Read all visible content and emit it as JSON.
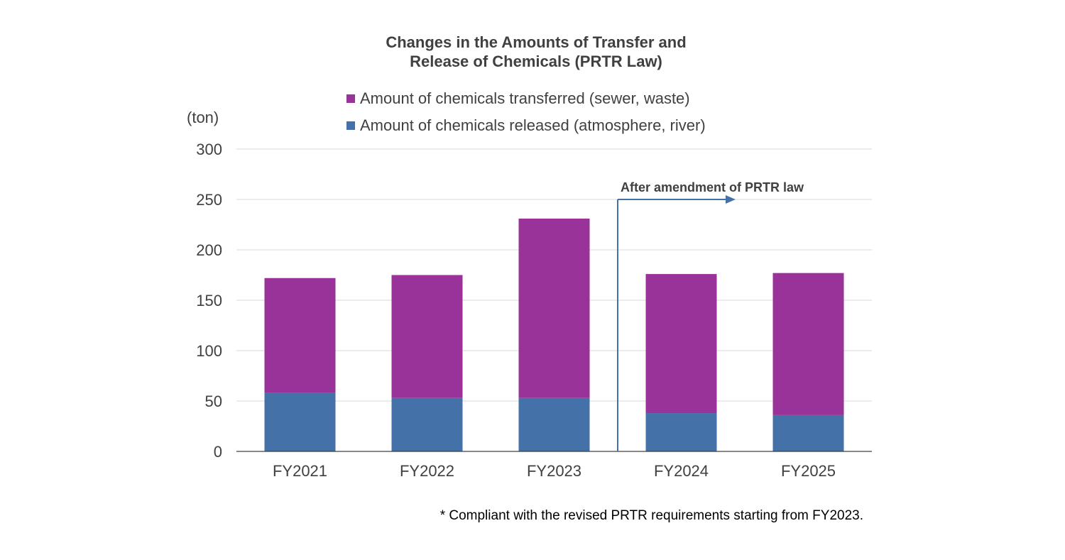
{
  "chart_data": {
    "type": "bar",
    "stacked": true,
    "title_line1": "Changes in the Amounts of Transfer and",
    "title_line2": "Release of Chemicals (PRTR Law)",
    "unit_label": "(ton)",
    "categories": [
      "FY2021",
      "FY2022",
      "FY2023",
      "FY2024",
      "FY2025"
    ],
    "series": [
      {
        "name": "Amount of chemicals released (atmosphere, river)",
        "values": [
          58,
          53,
          53,
          38,
          36
        ],
        "color": "#4472a8"
      },
      {
        "name": "Amount of chemicals transferred (sewer, waste)",
        "values": [
          114,
          122,
          178,
          138,
          141
        ],
        "color": "#993399"
      }
    ],
    "ylim": [
      0,
      300
    ],
    "yticks": [
      "0",
      "50",
      "100",
      "150",
      "200",
      "250",
      "300"
    ],
    "grid": true,
    "legend_placement": "top",
    "annotation": {
      "text": "After amendment of PRTR law",
      "between": [
        "FY2023",
        "FY2024"
      ],
      "y_level": 250,
      "color": "#4472a8"
    },
    "footnote": "* Compliant with the revised PRTR requirements starting from FY2023."
  }
}
